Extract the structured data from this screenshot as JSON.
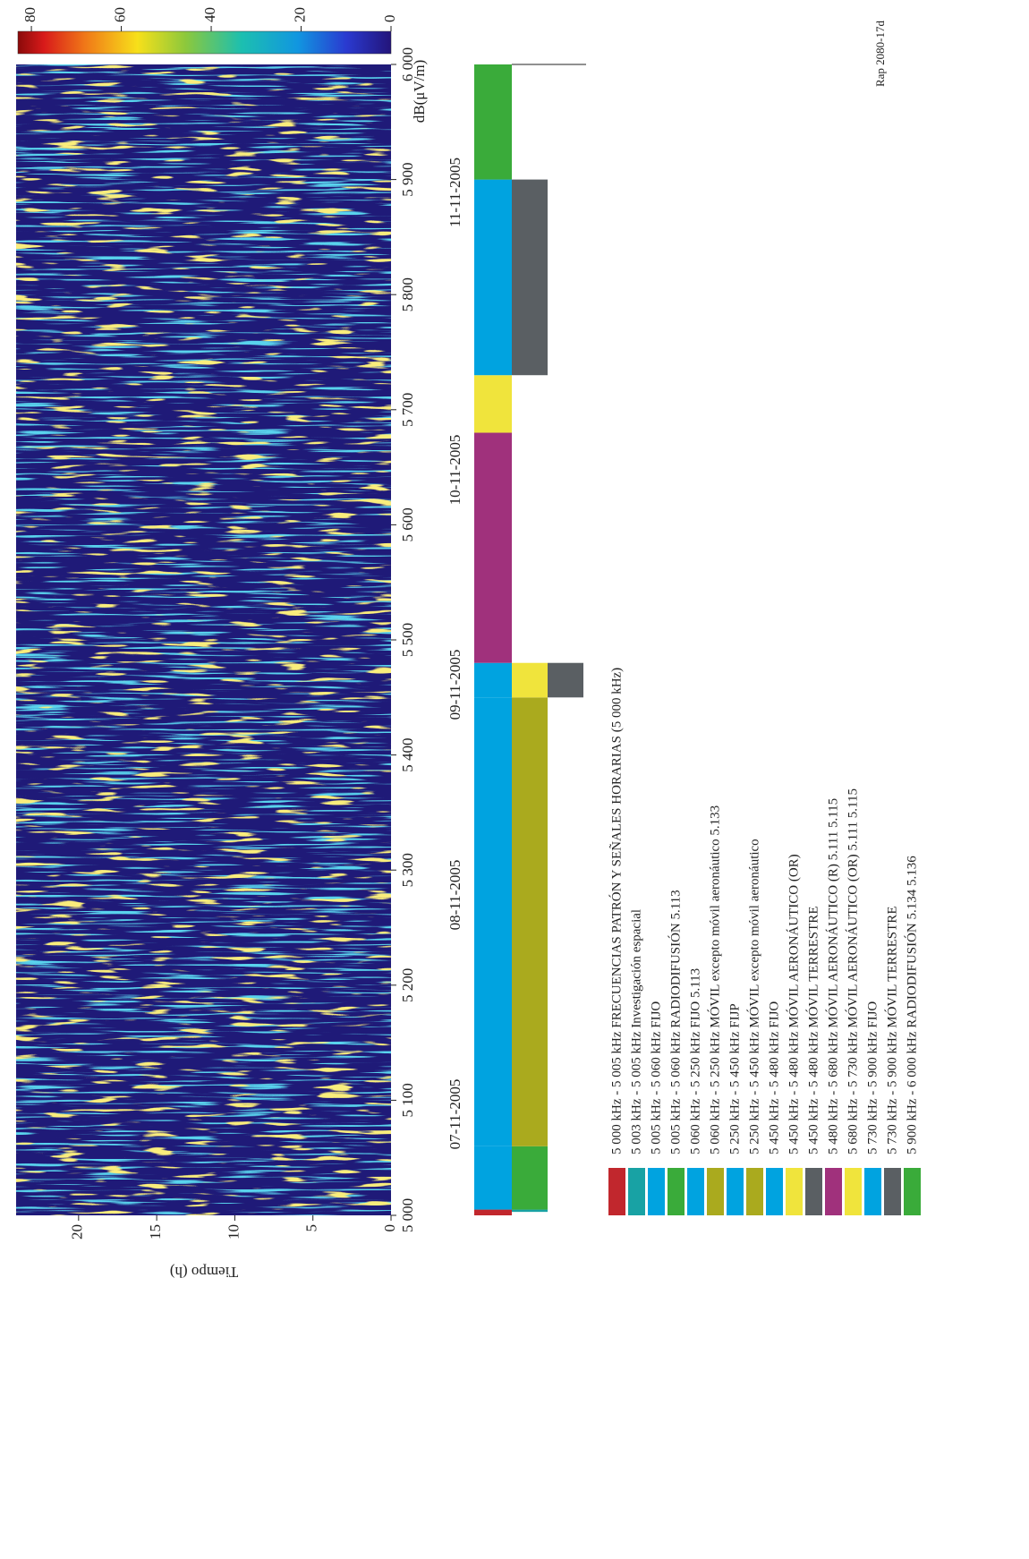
{
  "chart_data": {
    "type": "heatmap",
    "xlim": [
      5000,
      6000
    ],
    "xticks": [
      {
        "value": 5000,
        "label": "5 000"
      },
      {
        "value": 5100,
        "label": "5 100"
      },
      {
        "value": 5200,
        "label": "5 200"
      },
      {
        "value": 5300,
        "label": "5 300"
      },
      {
        "value": 5400,
        "label": "5 400"
      },
      {
        "value": 5500,
        "label": "5 500"
      },
      {
        "value": 5600,
        "label": "5 600"
      },
      {
        "value": 5700,
        "label": "5 700"
      },
      {
        "value": 5800,
        "label": "5 800"
      },
      {
        "value": 5900,
        "label": "5 900"
      },
      {
        "value": 6000,
        "label": "6 000"
      }
    ],
    "ylabel": "Tiempo (h)",
    "ylim": [
      0,
      24
    ],
    "yticks": [
      0,
      5,
      10,
      15,
      20
    ],
    "dates": [
      "07-11-2005",
      "08-11-2005",
      "09-11-2005",
      "10-11-2005",
      "11-11-2005"
    ],
    "colorbar": {
      "label": "dB(μV/m)",
      "lim": [
        0,
        83
      ],
      "ticks": [
        0,
        20,
        40,
        60,
        80
      ]
    },
    "figure_ref": "Rap 2080-17d",
    "allocations": [
      {
        "label": "5 000 kHz - 5 005 kHz FRECUENCIAS PATRÓN Y SEÑALES HORARIAS (5 000 kHz)",
        "low": 5000,
        "high": 5005,
        "color": "#c1272d"
      },
      {
        "label": "5 003 kHz - 5 005 kHz Investigación espacial",
        "low": 5003,
        "high": 5005,
        "color": "#18a2a4"
      },
      {
        "label": "5 005 kHz - 5 060 kHz FIJO",
        "low": 5005,
        "high": 5060,
        "color": "#00a3e0"
      },
      {
        "label": "5 005 kHz - 5 060 kHz RADIODIFUSIÓN 5.113",
        "low": 5005,
        "high": 5060,
        "color": "#3aab3a"
      },
      {
        "label": "5 060 kHz - 5 250 kHz FIJO 5.113",
        "low": 5060,
        "high": 5250,
        "color": "#00a3e0"
      },
      {
        "label": "5 060 kHz - 5 250 kHz MÓVIL excepto móvil aeronáutico 5.133",
        "low": 5060,
        "high": 5250,
        "color": "#aaaa1e"
      },
      {
        "label": "5 250 kHz - 5 450 kHz FIJP",
        "low": 5250,
        "high": 5450,
        "color": "#00a3e0"
      },
      {
        "label": "5 250 kHz - 5 450 kHz MÓVIL excepto móvil aeronáutico",
        "low": 5250,
        "high": 5450,
        "color": "#aaaa1e"
      },
      {
        "label": "5 450 kHz - 5 480 kHz FIJO",
        "low": 5450,
        "high": 5480,
        "color": "#00a3e0"
      },
      {
        "label": "5 450 kHz - 5 480 kHz MÓVIL AERONÁUTICO (OR)",
        "low": 5450,
        "high": 5480,
        "color": "#f0e43c"
      },
      {
        "label": "5 450 kHz - 5 480 kHz MÓVIL TERRESTRE",
        "low": 5450,
        "high": 5480,
        "color": "#5a5f63"
      },
      {
        "label": "5 480 kHz - 5 680 kHz MÓVIL AERONÁUTICO (R) 5.111 5.115",
        "low": 5480,
        "high": 5680,
        "color": "#a0317c"
      },
      {
        "label": "5 680 kHz - 5 730 kHz MÓVIL AERONÁUTICO (OR) 5.111 5.115",
        "low": 5680,
        "high": 5730,
        "color": "#f0e43c"
      },
      {
        "label": "5 730 kHz - 5 900 kHz FIJO",
        "low": 5730,
        "high": 5900,
        "color": "#00a3e0"
      },
      {
        "label": "5 730 kHz - 5 900 kHz MÓVIL TERRESTRE",
        "low": 5730,
        "high": 5900,
        "color": "#5a5f63"
      },
      {
        "label": "5 900 kHz - 6 000 kHz RADIODIFUSIÓN 5.134 5.136",
        "low": 5900,
        "high": 6000,
        "color": "#3aab3a"
      }
    ]
  }
}
